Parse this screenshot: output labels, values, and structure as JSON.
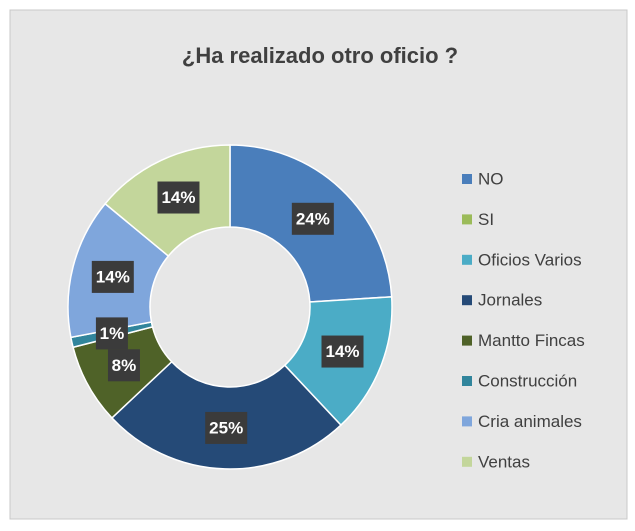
{
  "chart_data": {
    "type": "donut",
    "title": "¿Ha realizado otro oficio ?",
    "categories": [
      "NO",
      "SI",
      "Oficios Varios",
      "Jornales",
      "Mantto Fincas",
      "Construcción",
      "Cria animales",
      "Ventas"
    ],
    "values": [
      24,
      0,
      14,
      25,
      8,
      1,
      14,
      14
    ],
    "value_labels": [
      "24%",
      null,
      "14%",
      "25%",
      "8%",
      "1%",
      "14%",
      "14%"
    ],
    "colors": [
      "#4a7ebb",
      "#9bbb59",
      "#4bacc6",
      "#254a77",
      "#4f6228",
      "#31859c",
      "#7fa6dc",
      "#c3d69b"
    ],
    "legend": "right"
  }
}
